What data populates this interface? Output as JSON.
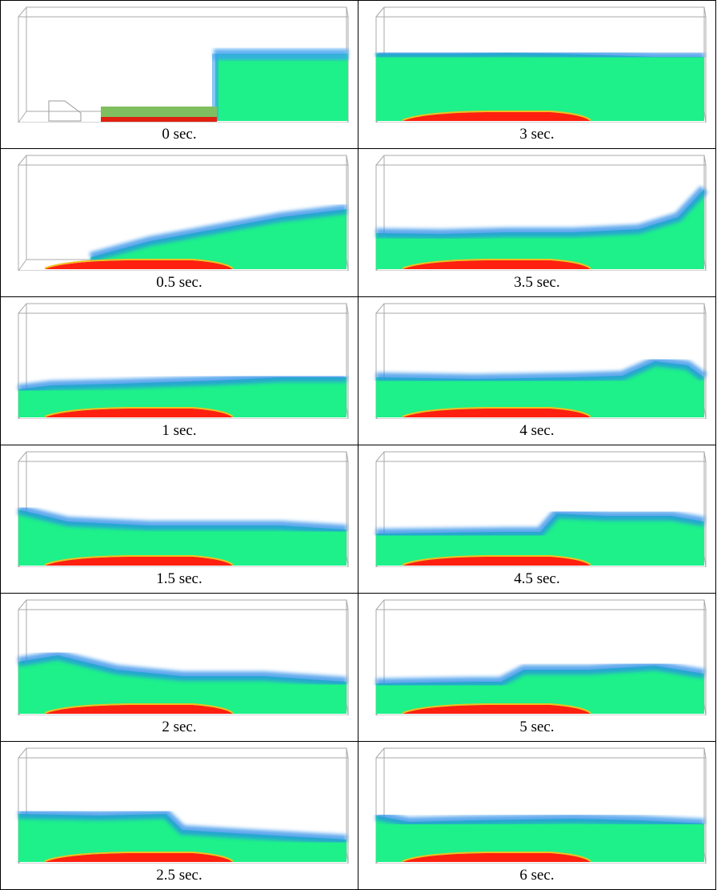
{
  "figure": {
    "rows": [
      [
        {
          "caption": "0 sec."
        },
        {
          "caption": "3 sec."
        }
      ],
      [
        {
          "caption": "0.5 sec."
        },
        {
          "caption": "3.5 sec."
        }
      ],
      [
        {
          "caption": "1 sec."
        },
        {
          "caption": "4 sec."
        }
      ],
      [
        {
          "caption": "1.5 sec."
        },
        {
          "caption": "4.5 sec."
        }
      ],
      [
        {
          "caption": "2 sec."
        },
        {
          "caption": "5 sec."
        }
      ],
      [
        {
          "caption": "2.5 sec."
        },
        {
          "caption": "6 sec."
        }
      ]
    ]
  }
}
